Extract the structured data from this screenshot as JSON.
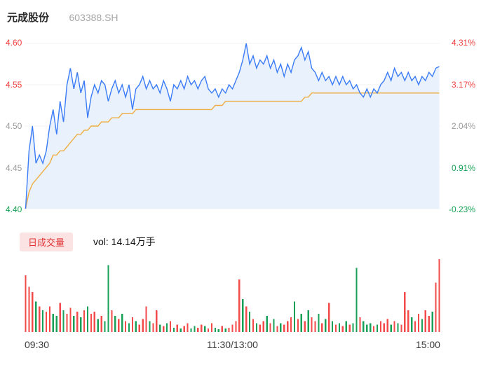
{
  "header": {
    "stock_name": "元成股份",
    "stock_code": "603388.SH"
  },
  "price_chart": {
    "y_axis_left": [
      {
        "label": "4.60",
        "color": "#f04141"
      },
      {
        "label": "4.55",
        "color": "#f04141"
      },
      {
        "label": "4.50",
        "color": "#9b9b9b"
      },
      {
        "label": "4.45",
        "color": "#9b9b9b"
      },
      {
        "label": "4.40",
        "color": "#17a254"
      }
    ],
    "y_axis_right": [
      {
        "label": "4.31%",
        "color": "#f04141"
      },
      {
        "label": "3.17%",
        "color": "#f04141"
      },
      {
        "label": "2.04%",
        "color": "#9b9b9b"
      },
      {
        "label": "0.91%",
        "color": "#17a254"
      },
      {
        "label": "-0.23%",
        "color": "#17a254"
      }
    ]
  },
  "volume_section": {
    "badge": "日成交量",
    "badge_color": "#e23434",
    "badge_bg": "#fbe3e3",
    "vol_text": "vol: 14.14万手"
  },
  "chart_data": {
    "type": "line",
    "title": "元成股份 603388.SH",
    "x_axis": {
      "labels": [
        "09:30",
        "11:30/13:00",
        "15:00"
      ]
    },
    "y_axis": {
      "min": 4.4,
      "max": 4.6,
      "price_ticks": [
        4.6,
        4.55,
        4.5,
        4.45,
        4.4
      ],
      "percent_ticks": [
        "4.31%",
        "3.17%",
        "2.04%",
        "0.91%",
        "-0.23%"
      ]
    },
    "grid_color": "#f3f3f3",
    "area_fill": "#e9f1fd",
    "series": [
      {
        "name": "price",
        "color": "#3b7cf6",
        "values": [
          4.4,
          4.47,
          4.5,
          4.455,
          4.465,
          4.455,
          4.47,
          4.5,
          4.52,
          4.49,
          4.53,
          4.505,
          4.55,
          4.57,
          4.545,
          4.565,
          4.54,
          4.555,
          4.51,
          4.535,
          4.55,
          4.54,
          4.555,
          4.55,
          4.53,
          4.545,
          4.555,
          4.54,
          4.55,
          4.535,
          4.55,
          4.52,
          4.545,
          4.55,
          4.56,
          4.545,
          4.555,
          4.545,
          4.55,
          4.54,
          4.555,
          4.545,
          4.53,
          4.55,
          4.545,
          4.555,
          4.545,
          4.56,
          4.55,
          4.555,
          4.545,
          4.555,
          4.56,
          4.545,
          4.54,
          4.545,
          4.535,
          4.545,
          4.54,
          4.55,
          4.545,
          4.555,
          4.565,
          4.58,
          4.6,
          4.575,
          4.585,
          4.57,
          4.58,
          4.575,
          4.585,
          4.57,
          4.58,
          4.565,
          4.575,
          4.56,
          4.575,
          4.565,
          4.58,
          4.585,
          4.595,
          4.58,
          4.59,
          4.57,
          4.565,
          4.555,
          4.565,
          4.555,
          4.56,
          4.55,
          4.56,
          4.55,
          4.56,
          4.55,
          4.555,
          4.545,
          4.55,
          4.54,
          4.535,
          4.545,
          4.535,
          4.545,
          4.54,
          4.55,
          4.555,
          4.565,
          4.555,
          4.57,
          4.56,
          4.565,
          4.555,
          4.565,
          4.555,
          4.56,
          4.55,
          4.56,
          4.555,
          4.565,
          4.56,
          4.57,
          4.572
        ]
      },
      {
        "name": "avg_price",
        "color": "#eeae44",
        "values": [
          4.4,
          4.42,
          4.43,
          4.435,
          4.44,
          4.445,
          4.45,
          4.455,
          4.465,
          4.465,
          4.47,
          4.47,
          4.475,
          4.48,
          4.485,
          4.49,
          4.49,
          4.495,
          4.495,
          4.5,
          4.5,
          4.5,
          4.505,
          4.505,
          4.505,
          4.51,
          4.51,
          4.51,
          4.515,
          4.515,
          4.515,
          4.515,
          4.52,
          4.52,
          4.52,
          4.52,
          4.52,
          4.52,
          4.52,
          4.52,
          4.52,
          4.52,
          4.52,
          4.52,
          4.52,
          4.52,
          4.52,
          4.52,
          4.52,
          4.52,
          4.52,
          4.52,
          4.52,
          4.52,
          4.52,
          4.525,
          4.525,
          4.525,
          4.53,
          4.53,
          4.53,
          4.53,
          4.53,
          4.53,
          4.53,
          4.53,
          4.53,
          4.53,
          4.53,
          4.53,
          4.53,
          4.53,
          4.53,
          4.53,
          4.53,
          4.53,
          4.53,
          4.53,
          4.53,
          4.53,
          4.53,
          4.535,
          4.535,
          4.54,
          4.54,
          4.54,
          4.54,
          4.54,
          4.54,
          4.54,
          4.54,
          4.54,
          4.54,
          4.54,
          4.54,
          4.54,
          4.54,
          4.54,
          4.54,
          4.54,
          4.54,
          4.54,
          4.54,
          4.54,
          4.54,
          4.54,
          4.54,
          4.54,
          4.54,
          4.54,
          4.54,
          4.54,
          4.54,
          4.54,
          4.54,
          4.54,
          4.54,
          4.54,
          4.54,
          4.54,
          4.54
        ]
      }
    ],
    "volume": {
      "up_color": "#f34a4a",
      "down_color": "#18a058",
      "heights": [
        0.78,
        0.62,
        0.55,
        0.42,
        0.35,
        0.3,
        0.28,
        0.35,
        0.25,
        0.22,
        0.4,
        0.3,
        0.25,
        0.33,
        0.22,
        0.28,
        0.2,
        0.3,
        0.35,
        0.25,
        0.28,
        0.18,
        0.22,
        0.15,
        0.92,
        0.3,
        0.22,
        0.18,
        0.25,
        0.15,
        0.12,
        0.2,
        0.15,
        0.1,
        0.18,
        0.35,
        0.15,
        0.12,
        0.3,
        0.1,
        0.08,
        0.12,
        0.15,
        0.06,
        0.1,
        0.05,
        0.08,
        0.12,
        0.05,
        0.08,
        0.06,
        0.1,
        0.08,
        0.05,
        0.12,
        0.06,
        0.04,
        0.08,
        0.05,
        0.06,
        0.1,
        0.15,
        0.72,
        0.45,
        0.35,
        0.28,
        0.18,
        0.12,
        0.1,
        0.15,
        0.22,
        0.12,
        0.18,
        0.08,
        0.12,
        0.1,
        0.15,
        0.2,
        0.42,
        0.18,
        0.25,
        0.15,
        0.3,
        0.2,
        0.15,
        0.25,
        0.12,
        0.18,
        0.4,
        0.15,
        0.1,
        0.12,
        0.08,
        0.15,
        0.1,
        0.12,
        0.88,
        0.2,
        0.15,
        0.1,
        0.12,
        0.08,
        0.1,
        0.15,
        0.12,
        0.18,
        0.1,
        0.15,
        0.12,
        0.1,
        0.55,
        0.3,
        0.2,
        0.15,
        0.25,
        0.18,
        0.3,
        0.22,
        0.28,
        0.68,
        1.0
      ],
      "colors": "rrrgrgrrggrgrrgrgrgrrgrggrgrgrgrgrrrgrrgrgrgrgrrggrrgrrggrgrrrrgrgrgrrgrgrgrrrgrgrgrrgrgrgrgrgrggrgggrgrrrgrgrrrgrrgrrgrr"
    }
  }
}
